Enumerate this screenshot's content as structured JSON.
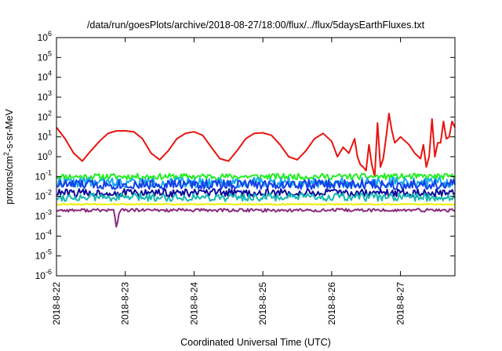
{
  "chart_data": {
    "type": "line",
    "title": "/data/run/goesPlots/archive/2018-08-27/18:00/flux/../flux/5daysEarthFluxes.txt",
    "xlabel": "Coordinated Universal Time (UTC)",
    "ylabel": {
      "prefix": "protons/cm",
      "sup": "2",
      "suffix": "-s-sr-MeV"
    },
    "x_scale": "time",
    "y_scale": "log",
    "xlim": [
      "2018-08-22T00:00",
      "2018-08-27T19:00"
    ],
    "ylim": [
      1e-06,
      1000000.0
    ],
    "x_ticks": [
      "2018-8-22",
      "2018-8-23",
      "2018-8-24",
      "2018-8-25",
      "2018-8-26",
      "2018-8-27"
    ],
    "y_ticks": [
      {
        "base": "10",
        "exp": "-6"
      },
      {
        "base": "10",
        "exp": "-5"
      },
      {
        "base": "10",
        "exp": "-4"
      },
      {
        "base": "10",
        "exp": "-3"
      },
      {
        "base": "10",
        "exp": "-2"
      },
      {
        "base": "10",
        "exp": "-1"
      },
      {
        "base": "10",
        "exp": "0"
      },
      {
        "base": "10",
        "exp": "1"
      },
      {
        "base": "10",
        "exp": "2"
      },
      {
        "base": "10",
        "exp": "3"
      },
      {
        "base": "10",
        "exp": "4"
      },
      {
        "base": "10",
        "exp": "5"
      },
      {
        "base": "10",
        "exp": "6"
      }
    ],
    "grid": false,
    "legend": "none",
    "series": [
      {
        "color": "#e8140e",
        "x": [
          "2018-08-22T00:00",
          "2018-08-22T03:00",
          "2018-08-22T06:00",
          "2018-08-22T09:00",
          "2018-08-22T12:00",
          "2018-08-22T15:00",
          "2018-08-22T18:00",
          "2018-08-22T21:00",
          "2018-08-23T00:00",
          "2018-08-23T03:00",
          "2018-08-23T06:00",
          "2018-08-23T09:00",
          "2018-08-23T12:00",
          "2018-08-23T15:00",
          "2018-08-23T18:00",
          "2018-08-23T21:00",
          "2018-08-24T00:00",
          "2018-08-24T03:00",
          "2018-08-24T06:00",
          "2018-08-24T09:00",
          "2018-08-24T12:00",
          "2018-08-24T15:00",
          "2018-08-24T18:00",
          "2018-08-24T21:00",
          "2018-08-25T00:00",
          "2018-08-25T03:00",
          "2018-08-25T06:00",
          "2018-08-25T09:00",
          "2018-08-25T12:00",
          "2018-08-25T15:00",
          "2018-08-25T18:00",
          "2018-08-25T21:00",
          "2018-08-26T00:00",
          "2018-08-26T02:00",
          "2018-08-26T04:00",
          "2018-08-26T06:00",
          "2018-08-26T08:00",
          "2018-08-26T09:00",
          "2018-08-26T10:00",
          "2018-08-26T11:00",
          "2018-08-26T12:00",
          "2018-08-26T13:00",
          "2018-08-26T14:00",
          "2018-08-26T15:00",
          "2018-08-26T16:00",
          "2018-08-26T17:00",
          "2018-08-26T18:00",
          "2018-08-26T19:00",
          "2018-08-26T20:00",
          "2018-08-26T21:00",
          "2018-08-26T22:00",
          "2018-08-27T00:00",
          "2018-08-27T03:00",
          "2018-08-27T05:00",
          "2018-08-27T07:00",
          "2018-08-27T08:00",
          "2018-08-27T09:00",
          "2018-08-27T10:00",
          "2018-08-27T11:00",
          "2018-08-27T12:00",
          "2018-08-27T13:00",
          "2018-08-27T14:00",
          "2018-08-27T15:00",
          "2018-08-27T16:00",
          "2018-08-27T17:00",
          "2018-08-27T18:00",
          "2018-08-27T19:00"
        ],
        "y": [
          30,
          8,
          1.5,
          0.6,
          2,
          6,
          15,
          20,
          20,
          18,
          8,
          1.5,
          0.7,
          2,
          8,
          15,
          18,
          12,
          3,
          0.8,
          0.6,
          2,
          8,
          15,
          16,
          12,
          4,
          1,
          0.7,
          2,
          8,
          15,
          6,
          1,
          3,
          1.5,
          8,
          1,
          0.4,
          0.3,
          0.2,
          4,
          0.4,
          0.1,
          50,
          0.3,
          0.8,
          10,
          150,
          20,
          5,
          10,
          4,
          1.5,
          0.8,
          4,
          0.3,
          1,
          80,
          1,
          5,
          5,
          60,
          8,
          10,
          60,
          30
        ]
      },
      {
        "color": "#22ee22",
        "x": [
          "2018-08-22T00:00",
          "2018-08-27T19:00"
        ],
        "y": [
          0.1,
          0.1
        ],
        "noise": 0.15,
        "seed": 11
      },
      {
        "color": "#18a8ec",
        "x": [
          "2018-08-22T00:00",
          "2018-08-27T19:00"
        ],
        "y": [
          0.05,
          0.05
        ],
        "noise": 0.25,
        "seed": 22
      },
      {
        "color": "#1440e8",
        "x": [
          "2018-08-22T00:00",
          "2018-08-27T19:00"
        ],
        "y": [
          0.04,
          0.04
        ],
        "noise": 0.25,
        "seed": 33
      },
      {
        "color": "#0c0c9a",
        "x": [
          "2018-08-22T00:00",
          "2018-08-27T19:00"
        ],
        "y": [
          0.015,
          0.015
        ],
        "noise": 0.2,
        "seed": 44
      },
      {
        "color": "#18b8b0",
        "x": [
          "2018-08-22T00:00",
          "2018-08-27T19:00"
        ],
        "y": [
          0.009,
          0.009
        ],
        "noise": 0.2,
        "seed": 55
      },
      {
        "color": "#eeee00",
        "x": [
          "2018-08-22T00:00",
          "2018-08-27T19:00"
        ],
        "y": [
          0.004,
          0.004
        ],
        "noise": 0.03,
        "seed": 66
      },
      {
        "color": "#8a2a7e",
        "x": [
          "2018-08-22T00:00",
          "2018-08-22T20:00",
          "2018-08-22T21:00",
          "2018-08-22T22:00",
          "2018-08-27T19:00"
        ],
        "y": [
          0.002,
          0.002,
          0.00025,
          0.002,
          0.002
        ],
        "noise": 0.08,
        "seed": 77
      }
    ]
  }
}
